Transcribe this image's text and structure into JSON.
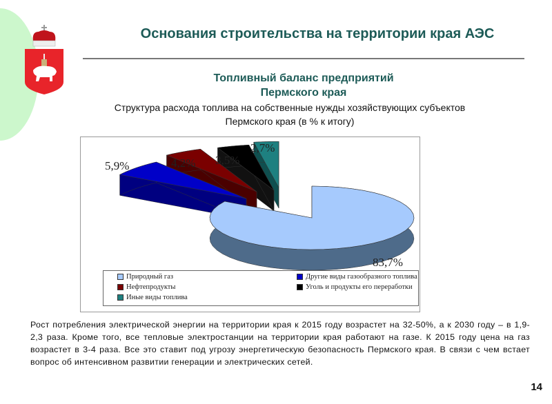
{
  "header": {
    "title": "Основания строительства на территории края АЭС"
  },
  "subtitle": {
    "line1": "Топливный баланс предприятий",
    "line2": "Пермского края",
    "line3": "Структура расхода топлива на собственные нужды хозяйствующих субъектов",
    "line4": "Пермского края (в % к итогу)"
  },
  "chart_data": {
    "type": "pie",
    "title": "Структура расхода топлива на собственные нужды хозяйствующих субъектов Пермского края (в % к итогу)",
    "categories": [
      "Природный газ",
      "Другие виды газообразного топлива",
      "Нефтепродукты",
      "Уголь и продукты его переработки",
      "Иные виды топлива"
    ],
    "values": [
      83.7,
      5.9,
      4.2,
      3.5,
      2.7
    ],
    "labels": [
      "83,7%",
      "5,9%",
      "4,2%",
      "3,5%",
      "2,7%"
    ],
    "colors": [
      "#a6cafd",
      "#0000c8",
      "#7a0000",
      "#000000",
      "#1e8080"
    ],
    "legend_position": "bottom"
  },
  "body_text": "Рост потребления электрической энергии на территории края к 2015 году возрастет на 32-50%, а к 2030 году – в 1,9-2,3 раза. Кроме того, все тепловые электростанции на территории края работают на газе. К 2015 году цена на газ возрастет в 3-4 раза. Все это ставит под угрозу энергетическую безопасность Пермского края. В связи с чем встает вопрос об интенсивном развитии генерации и электрических сетей.",
  "page_number": "14"
}
